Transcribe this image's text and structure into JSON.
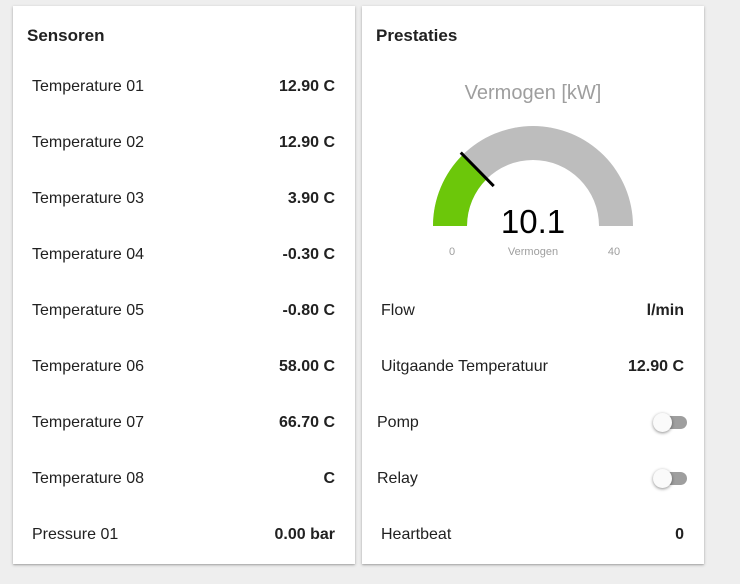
{
  "sensoren": {
    "title": "Sensoren",
    "rows": [
      {
        "label": "Temperature 01",
        "value": "12.90 C"
      },
      {
        "label": "Temperature 02",
        "value": "12.90 C"
      },
      {
        "label": "Temperature 03",
        "value": "3.90 C"
      },
      {
        "label": "Temperature 04",
        "value": "-0.30 C"
      },
      {
        "label": "Temperature 05",
        "value": "-0.80 C"
      },
      {
        "label": "Temperature 06",
        "value": "58.00 C"
      },
      {
        "label": "Temperature 07",
        "value": "66.70 C"
      },
      {
        "label": "Temperature 08",
        "value": "C"
      },
      {
        "label": "Pressure 01",
        "value": "0.00 bar"
      }
    ]
  },
  "prestaties": {
    "title": "Prestaties",
    "gauge": {
      "title": "Vermogen [kW]",
      "value": "10.1",
      "level": 10.1,
      "min": "0",
      "max": "40",
      "min_value": 0,
      "max_value": 40,
      "label": "Vermogen",
      "fill_color": "#6cc70a",
      "track_color": "#bdbdbd"
    },
    "flow": {
      "label": "Flow",
      "value": "l/min"
    },
    "uitgaande": {
      "label": "Uitgaande Temperatuur",
      "value": "12.90 C"
    },
    "pomp": {
      "label": "Pomp",
      "on": false
    },
    "relay": {
      "label": "Relay",
      "on": false
    },
    "heartbeat": {
      "label": "Heartbeat",
      "value": "0"
    }
  }
}
